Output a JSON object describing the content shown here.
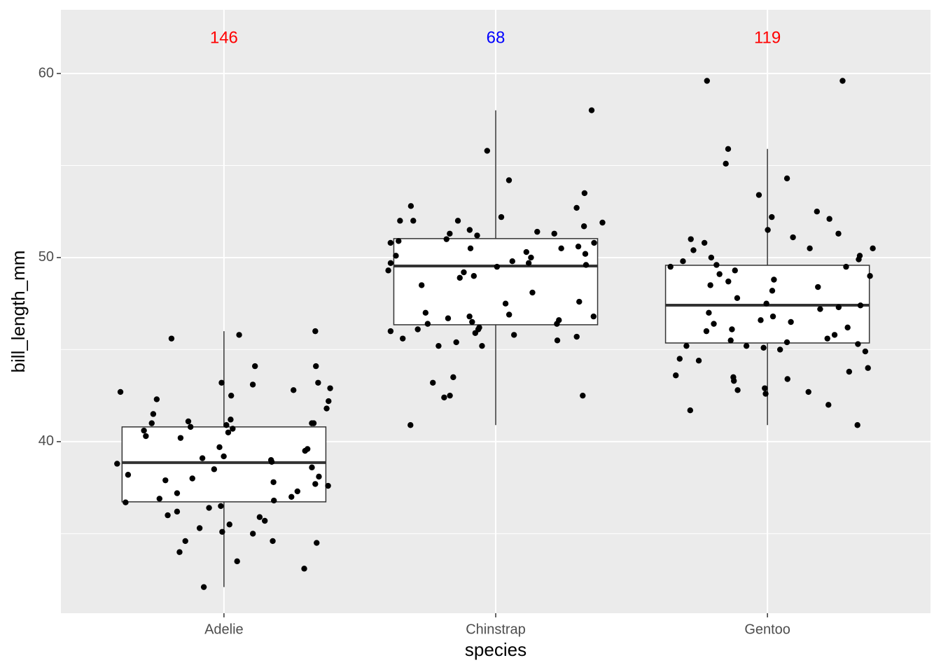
{
  "chart_data": {
    "type": "boxplot",
    "x_label": "species",
    "y_label": "bill_length_mm",
    "categories": [
      "Adelie",
      "Chinstrap",
      "Gentoo"
    ],
    "boxes": [
      {
        "low": 32.1,
        "q1": 36.73,
        "median": 38.86,
        "q3": 40.8,
        "high": 46.0
      },
      {
        "low": 40.9,
        "q1": 46.35,
        "median": 49.54,
        "q3": 51.03,
        "high": 58.0
      },
      {
        "low": 40.9,
        "q1": 45.36,
        "median": 47.41,
        "q3": 49.58,
        "high": 55.9
      }
    ],
    "points": [
      [
        44.1,
        45.6,
        46.0,
        45.8,
        42.3,
        42.7,
        42.8,
        42.2,
        41.8,
        42.5,
        43.2,
        43.2,
        42.9,
        43.1,
        44.1,
        41.5,
        41.2,
        41.1,
        41.0,
        41.0,
        40.9,
        40.8,
        40.6,
        40.5,
        40.3,
        40.2,
        39.7,
        39.6,
        39.5,
        39.2,
        39.0,
        38.9,
        38.8,
        38.6,
        38.5,
        38.2,
        38.1,
        37.8,
        37.7,
        37.6,
        37.3,
        37.0,
        36.9,
        36.7,
        36.5,
        36.2,
        36.0,
        35.9,
        35.7,
        35.5,
        35.3,
        35.1,
        35.0,
        34.6,
        34.5,
        34.0,
        33.5,
        33.1,
        32.1,
        34.6,
        36.8,
        37.9,
        39.1,
        40.7,
        41.0,
        38.0,
        37.2,
        36.4
      ],
      [
        58.0,
        55.8,
        54.2,
        53.5,
        52.8,
        52.7,
        52.2,
        52.0,
        52.0,
        51.9,
        51.7,
        51.5,
        51.4,
        51.3,
        51.3,
        51.0,
        50.9,
        50.8,
        50.6,
        50.5,
        50.3,
        50.2,
        50.1,
        50.0,
        49.8,
        49.7,
        49.6,
        49.5,
        49.2,
        49.0,
        48.9,
        48.5,
        48.1,
        47.6,
        47.5,
        46.9,
        46.8,
        46.7,
        46.6,
        46.5,
        46.4,
        46.4,
        46.2,
        46.1,
        46.0,
        45.9,
        45.7,
        45.6,
        45.5,
        45.4,
        45.2,
        45.2,
        43.5,
        43.2,
        42.5,
        42.4,
        42.5,
        40.9,
        50.5,
        49.7,
        51.2,
        52.0,
        46.8,
        47.0,
        50.8,
        49.3,
        45.8,
        46.1
      ],
      [
        59.6,
        59.6,
        55.9,
        55.1,
        54.3,
        53.4,
        52.5,
        52.2,
        52.1,
        51.5,
        51.3,
        51.1,
        51.0,
        50.8,
        50.5,
        50.5,
        50.4,
        50.1,
        50.0,
        49.9,
        49.8,
        49.6,
        49.5,
        49.5,
        49.3,
        49.1,
        49.0,
        48.8,
        48.7,
        48.5,
        48.4,
        48.2,
        47.8,
        47.5,
        47.4,
        47.3,
        47.2,
        47.0,
        46.8,
        46.6,
        46.5,
        46.4,
        46.2,
        46.1,
        46.0,
        45.8,
        45.6,
        45.5,
        45.4,
        45.3,
        45.2,
        45.2,
        45.1,
        45.0,
        44.9,
        44.5,
        44.4,
        44.0,
        43.8,
        43.6,
        43.5,
        43.4,
        43.3,
        42.9,
        42.8,
        42.7,
        42.6,
        42.0,
        41.7,
        40.9
      ]
    ],
    "annotations": [
      {
        "label": 146,
        "value": 61.9,
        "color": "#ff0000"
      },
      {
        "label": 68,
        "value": 61.9,
        "color": "#0000ff"
      },
      {
        "label": 119,
        "value": 61.9,
        "color": "#ff0000"
      }
    ],
    "ylim": [
      30.68,
      63.46
    ],
    "yticks": [
      40,
      50,
      60
    ],
    "minor_yticks": [
      35,
      45,
      55
    ],
    "grid": true
  }
}
